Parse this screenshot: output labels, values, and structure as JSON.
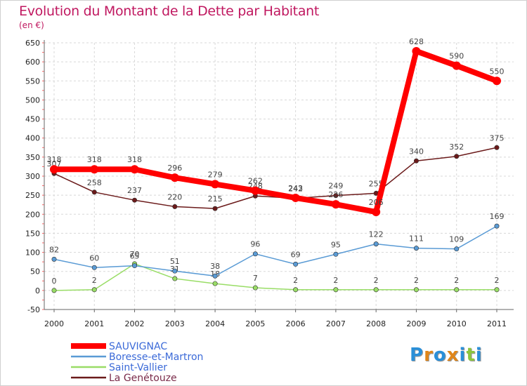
{
  "header": {
    "title": "Evolution du Montant de la Dette par Habitant",
    "unit": "(en €)"
  },
  "logo": {
    "text": "Proxiti",
    "letters": [
      "P",
      "r",
      "o",
      "x",
      "i",
      "t",
      "i"
    ],
    "colors": [
      "#2a8fd8",
      "#e0861a",
      "#2a8fd8",
      "#e0861a",
      "#2a8fd8",
      "#8cc63e",
      "#2a8fd8"
    ]
  },
  "chart_data": {
    "type": "line",
    "categories": [
      "2000",
      "2001",
      "2002",
      "2003",
      "2004",
      "2005",
      "2006",
      "2007",
      "2008",
      "2009",
      "2010",
      "2011"
    ],
    "ylim": [
      -50,
      650
    ],
    "yticks": [
      -50,
      0,
      50,
      100,
      150,
      200,
      250,
      300,
      350,
      400,
      450,
      500,
      550,
      600,
      650
    ],
    "grid": true,
    "legend": "bottom-left",
    "series": [
      {
        "name": "La Genétouze",
        "color": "#6b1a1a",
        "values": [
          307,
          258,
          237,
          220,
          215,
          248,
          242,
          249,
          255,
          340,
          352,
          375
        ],
        "labels": [
          "307",
          "258",
          "237",
          "220",
          "215",
          "248",
          "242",
          "249",
          "255",
          "340",
          "352",
          "375"
        ]
      },
      {
        "name": "Saint-Vallier",
        "color": "#99dd66",
        "values": [
          0,
          2,
          70,
          31,
          18,
          7,
          2,
          2,
          2,
          2,
          2,
          2
        ],
        "labels": [
          "0",
          "2",
          "70",
          "31",
          "18",
          "7",
          "2",
          "2",
          "2",
          "2",
          "2",
          "2"
        ]
      },
      {
        "name": "Boresse-et-Martron",
        "color": "#5a9bd5",
        "values": [
          82,
          60,
          65,
          51,
          38,
          96,
          69,
          95,
          122,
          111,
          109,
          169
        ],
        "labels": [
          "82",
          "60",
          "65",
          "51",
          "38",
          "96",
          "69",
          "95",
          "122",
          "111",
          "109",
          "169"
        ]
      },
      {
        "name": "SAUVIGNAC",
        "color": "#ff0000",
        "values": [
          318,
          318,
          318,
          296,
          279,
          262,
          243,
          226,
          206,
          628,
          590,
          550
        ],
        "labels": [
          "318",
          "318",
          "318",
          "296",
          "279",
          "262",
          "243",
          "226",
          "206",
          "628",
          "590",
          "550"
        ]
      }
    ]
  }
}
